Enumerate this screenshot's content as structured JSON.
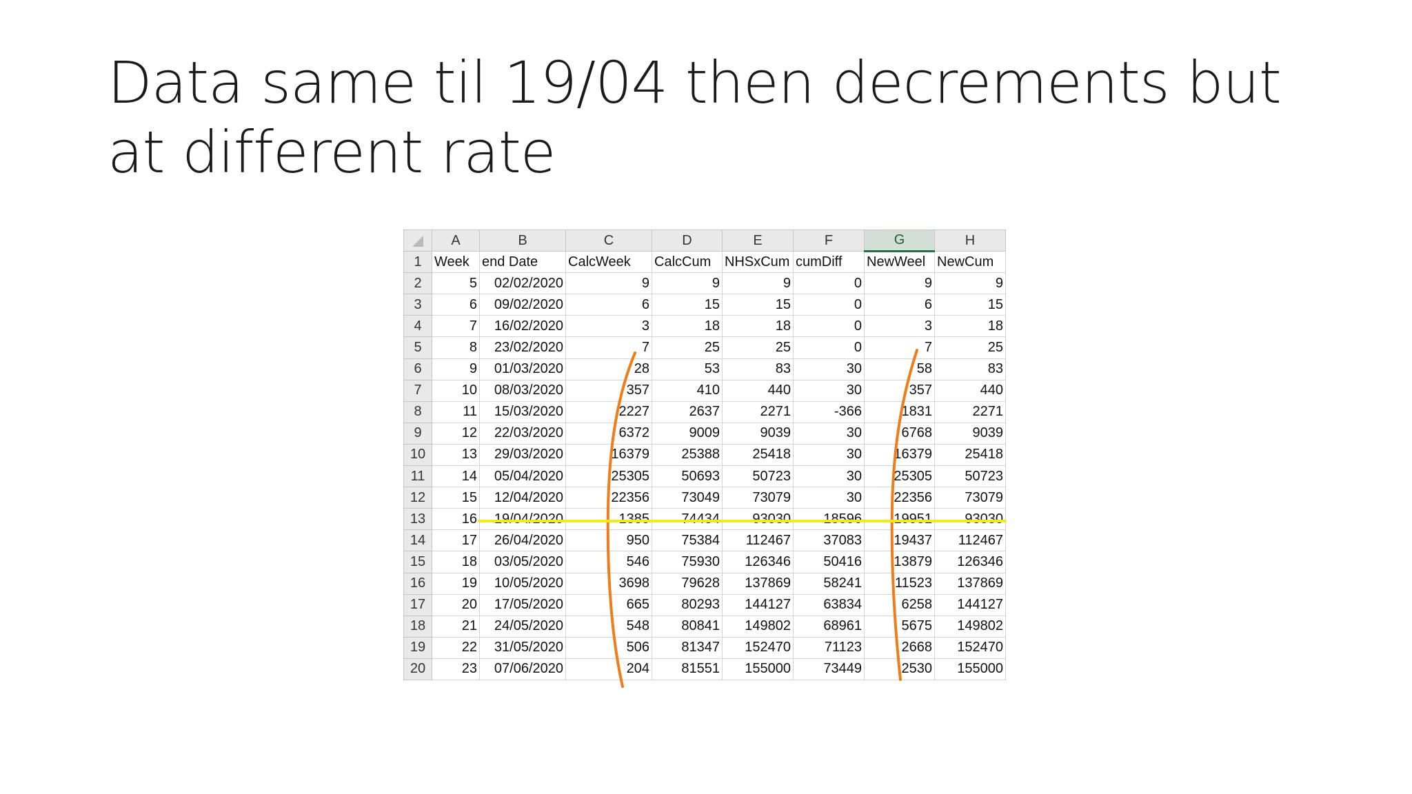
{
  "slide": {
    "title": "Data same til 19/04 then decrements but at different rate"
  },
  "sheet": {
    "column_letters": [
      "A",
      "B",
      "C",
      "D",
      "E",
      "F",
      "G",
      "H"
    ],
    "selected_column": "G",
    "headers": [
      "Week",
      "end Date",
      "CalcWeek",
      "CalcCum",
      "NHSxCum",
      "cumDiff",
      "NewWeel",
      "NewCum"
    ],
    "rows": [
      [
        "5",
        "02/02/2020",
        "9",
        "9",
        "9",
        "0",
        "9",
        "9"
      ],
      [
        "6",
        "09/02/2020",
        "6",
        "15",
        "15",
        "0",
        "6",
        "15"
      ],
      [
        "7",
        "16/02/2020",
        "3",
        "18",
        "18",
        "0",
        "3",
        "18"
      ],
      [
        "8",
        "23/02/2020",
        "7",
        "25",
        "25",
        "0",
        "7",
        "25"
      ],
      [
        "9",
        "01/03/2020",
        "28",
        "53",
        "83",
        "30",
        "58",
        "83"
      ],
      [
        "10",
        "08/03/2020",
        "357",
        "410",
        "440",
        "30",
        "357",
        "440"
      ],
      [
        "11",
        "15/03/2020",
        "2227",
        "2637",
        "2271",
        "-366",
        "1831",
        "2271"
      ],
      [
        "12",
        "22/03/2020",
        "6372",
        "9009",
        "9039",
        "30",
        "6768",
        "9039"
      ],
      [
        "13",
        "29/03/2020",
        "16379",
        "25388",
        "25418",
        "30",
        "16379",
        "25418"
      ],
      [
        "14",
        "05/04/2020",
        "25305",
        "50693",
        "50723",
        "30",
        "25305",
        "50723"
      ],
      [
        "15",
        "12/04/2020",
        "22356",
        "73049",
        "73079",
        "30",
        "22356",
        "73079"
      ],
      [
        "16",
        "19/04/2020",
        "1385",
        "74434",
        "93030",
        "18596",
        "19951",
        "93030"
      ],
      [
        "17",
        "26/04/2020",
        "950",
        "75384",
        "112467",
        "37083",
        "19437",
        "112467"
      ],
      [
        "18",
        "03/05/2020",
        "546",
        "75930",
        "126346",
        "50416",
        "13879",
        "126346"
      ],
      [
        "19",
        "10/05/2020",
        "3698",
        "79628",
        "137869",
        "58241",
        "11523",
        "137869"
      ],
      [
        "20",
        "17/05/2020",
        "665",
        "80293",
        "144127",
        "63834",
        "6258",
        "144127"
      ],
      [
        "21",
        "24/05/2020",
        "548",
        "80841",
        "149802",
        "68961",
        "5675",
        "149802"
      ],
      [
        "22",
        "31/05/2020",
        "506",
        "81347",
        "152470",
        "71123",
        "2668",
        "152470"
      ],
      [
        "23",
        "07/06/2020",
        "204",
        "81551",
        "155000",
        "73449",
        "2530",
        "155000"
      ]
    ]
  },
  "annotation_colors": {
    "bracket": "#ef7d1a",
    "highlight_line": "#f2ea1c"
  }
}
